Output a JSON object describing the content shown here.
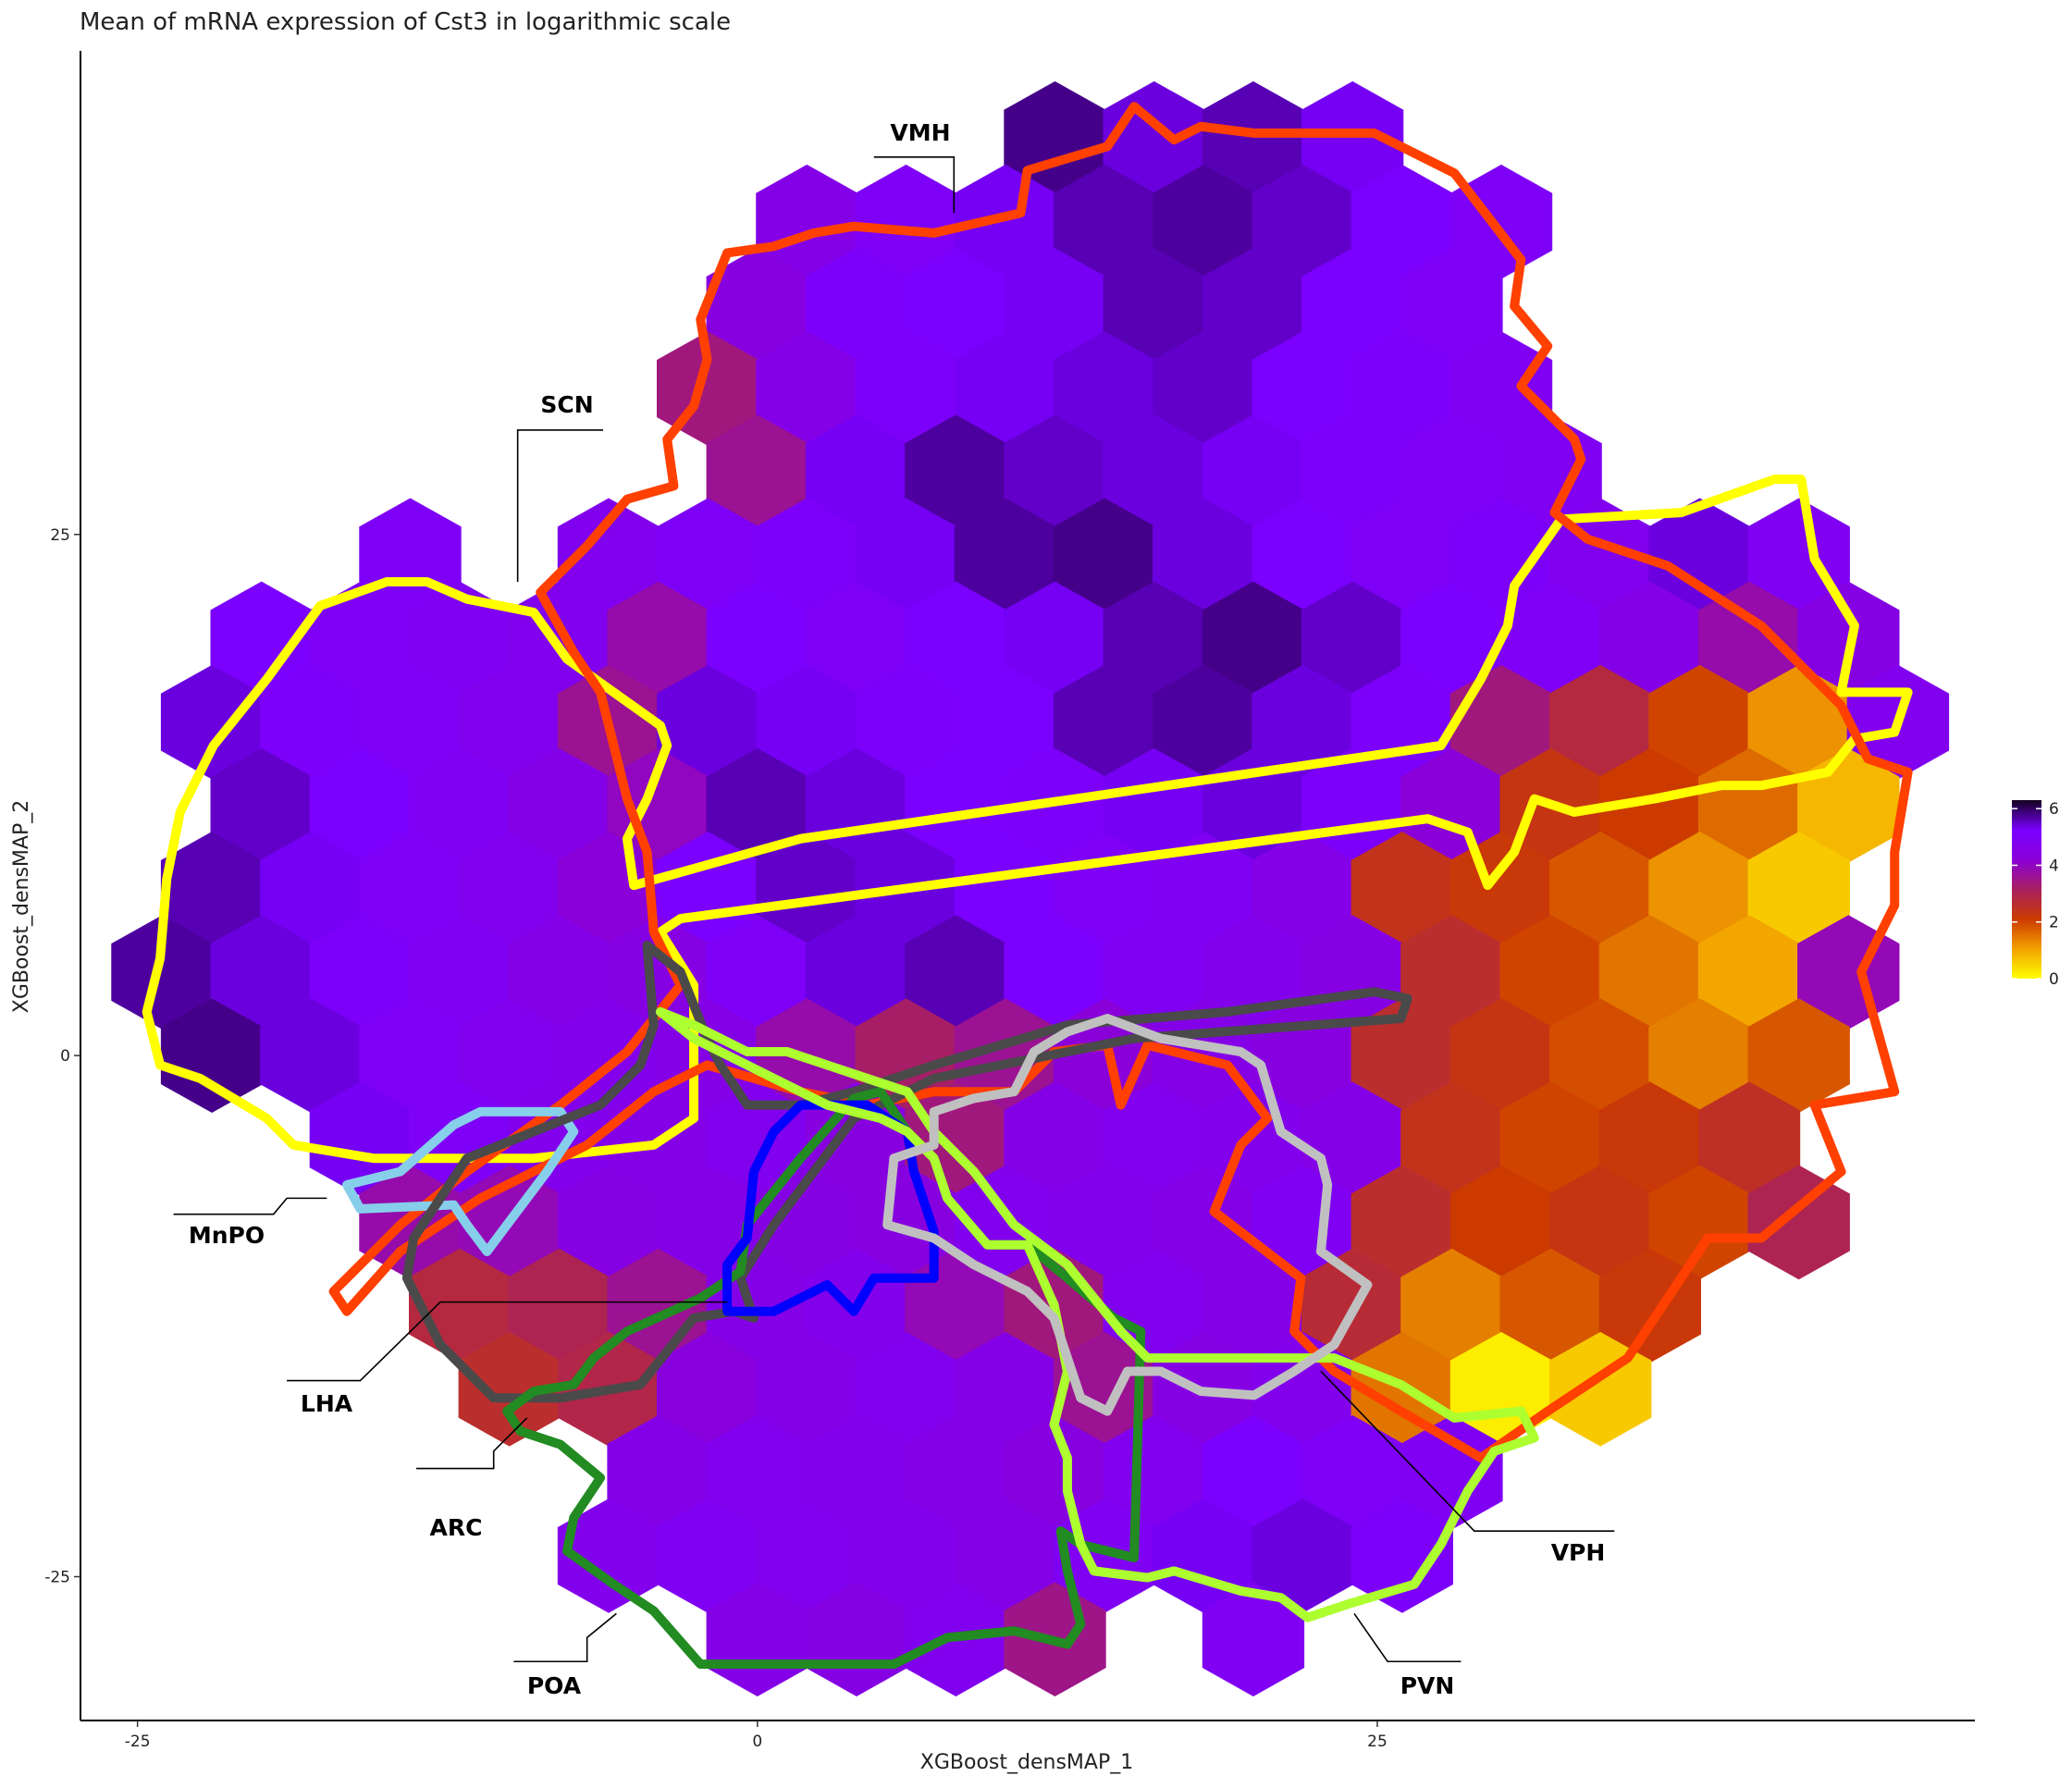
{
  "chart_data": {
    "type": "hexbin",
    "title": "Mean of mRNA expression of Cst3 in logarithmic scale",
    "x_label": "XGBoost_densMAP_1",
    "y_label": "XGBoost_densMAP_2",
    "xlim": [
      -27.3,
      49.1
    ],
    "ylim": [
      -31.9,
      48.2
    ],
    "xticks": [
      -25,
      0,
      25
    ],
    "yticks": [
      -25,
      0,
      25
    ],
    "colorbar": {
      "lim": [
        0,
        6.3
      ],
      "ticks": [
        0,
        2,
        4,
        6
      ],
      "colors": [
        "#ffff00",
        "#f2a100",
        "#cc3a00",
        "#a82060",
        "#8a00d8",
        "#7a00ff",
        "#14001f"
      ]
    },
    "rows": [
      {
        "y": 44,
        "x": [
          12,
          16,
          20,
          24
        ],
        "values": [
          5.8,
          5.4,
          5.6,
          5.3
        ]
      },
      {
        "y": 40,
        "x": [
          2,
          6,
          10,
          14,
          18,
          22,
          26,
          30
        ],
        "values": [
          4.6,
          5.0,
          5.3,
          5.6,
          5.7,
          5.5,
          5.2,
          5.0
        ]
      },
      {
        "y": 36,
        "x": [
          0,
          4,
          8,
          12,
          16,
          20,
          24,
          28
        ],
        "values": [
          4.4,
          5.1,
          5.2,
          5.3,
          5.6,
          5.5,
          5.2,
          5.0
        ]
      },
      {
        "y": 32,
        "x": [
          -2,
          2,
          6,
          10,
          14,
          18,
          22,
          26,
          30
        ],
        "values": [
          3.4,
          4.6,
          5.1,
          5.3,
          5.4,
          5.5,
          5.2,
          5.1,
          4.9
        ]
      },
      {
        "y": 28,
        "x": [
          0,
          4,
          8,
          12,
          16,
          20,
          24,
          28,
          32
        ],
        "values": [
          3.6,
          5.3,
          5.7,
          5.5,
          5.4,
          5.3,
          5.1,
          5.0,
          4.9
        ]
      },
      {
        "y": 24,
        "x": [
          -14,
          -6,
          -2,
          2,
          6,
          10,
          14,
          18,
          22,
          26,
          30,
          34,
          38,
          42
        ],
        "values": [
          5.0,
          4.8,
          5.0,
          5.1,
          5.3,
          5.7,
          5.8,
          5.4,
          5.2,
          5.0,
          5.1,
          4.8,
          5.4,
          4.9
        ]
      },
      {
        "y": 20,
        "x": [
          -20,
          -16,
          -12,
          -8,
          -4,
          0,
          4,
          8,
          12,
          16,
          20,
          24,
          28,
          32,
          36,
          40,
          44
        ],
        "values": [
          5.2,
          5.0,
          4.9,
          4.8,
          3.8,
          5.2,
          5.0,
          5.2,
          5.3,
          5.6,
          5.8,
          5.5,
          5.2,
          5.0,
          4.6,
          3.8,
          4.5
        ]
      },
      {
        "y": 16,
        "x": [
          -22,
          -18,
          -14,
          -10,
          -6,
          -2,
          2,
          6,
          10,
          14,
          18,
          22,
          26,
          30,
          34,
          38,
          42,
          46
        ],
        "values": [
          5.4,
          5.1,
          5.0,
          4.8,
          3.6,
          5.4,
          5.3,
          5.1,
          5.2,
          5.6,
          5.7,
          5.4,
          5.1,
          3.4,
          2.8,
          2.0,
          1.2,
          4.8
        ]
      },
      {
        "y": 12,
        "x": [
          -20,
          -16,
          -12,
          -8,
          -4,
          0,
          4,
          8,
          12,
          16,
          20,
          24,
          28,
          32,
          36,
          40,
          44
        ],
        "values": [
          5.5,
          5.2,
          4.9,
          4.6,
          4.0,
          5.6,
          5.4,
          5.2,
          5.1,
          5.3,
          5.4,
          5.1,
          4.2,
          2.3,
          2.1,
          1.6,
          0.8
        ]
      },
      {
        "y": 8,
        "x": [
          -22,
          -18,
          -14,
          -10,
          -6,
          -2,
          2,
          6,
          10,
          14,
          18,
          22,
          26,
          30,
          34,
          38,
          42
        ],
        "values": [
          5.6,
          5.3,
          5.0,
          4.8,
          4.2,
          5.2,
          5.5,
          5.4,
          5.2,
          5.0,
          4.9,
          4.6,
          2.4,
          2.2,
          1.8,
          1.2,
          0.6
        ]
      },
      {
        "y": 4,
        "x": [
          -24,
          -20,
          -16,
          -12,
          -8,
          -4,
          0,
          4,
          8,
          12,
          16,
          20,
          24,
          28,
          32,
          36,
          40,
          44
        ],
        "values": [
          5.7,
          5.4,
          5.1,
          4.9,
          4.6,
          4.5,
          5.0,
          5.4,
          5.6,
          5.2,
          4.9,
          4.7,
          4.5,
          2.6,
          2.0,
          1.5,
          1.0,
          3.9
        ]
      },
      {
        "y": 0,
        "x": [
          -22,
          -18,
          -14,
          -10,
          -6,
          -2,
          2,
          6,
          10,
          14,
          18,
          22,
          26,
          30,
          34,
          38,
          42
        ],
        "values": [
          5.8,
          5.4,
          5.0,
          4.8,
          4.7,
          4.6,
          3.8,
          3.2,
          3.6,
          4.2,
          4.6,
          4.4,
          2.6,
          2.3,
          1.9,
          1.4,
          1.8
        ]
      },
      {
        "y": -4,
        "x": [
          -16,
          -12,
          -8,
          -4,
          0,
          4,
          8,
          12,
          16,
          20,
          24,
          28,
          32,
          36,
          40
        ],
        "values": [
          5.3,
          5.0,
          4.7,
          4.6,
          4.8,
          4.4,
          3.4,
          4.6,
          4.8,
          4.7,
          4.6,
          2.4,
          2.0,
          2.2,
          2.5
        ]
      },
      {
        "y": -8,
        "x": [
          -14,
          -10,
          -6,
          -2,
          2,
          6,
          10,
          14,
          18,
          22,
          26,
          30,
          34,
          38,
          42
        ],
        "values": [
          3.8,
          3.9,
          4.5,
          4.6,
          4.5,
          4.4,
          4.8,
          4.7,
          4.6,
          4.9,
          2.6,
          2.1,
          2.3,
          2.0,
          3.0
        ]
      },
      {
        "y": -12,
        "x": [
          -12,
          -8,
          -4,
          0,
          4,
          8,
          12,
          16,
          20,
          24,
          28,
          32,
          36
        ],
        "values": [
          2.8,
          3.0,
          3.6,
          4.6,
          4.7,
          3.9,
          3.4,
          4.8,
          4.6,
          2.7,
          1.4,
          1.8,
          2.2
        ]
      },
      {
        "y": -16,
        "x": [
          -10,
          -6,
          -2,
          2,
          6,
          10,
          14,
          18,
          22,
          26,
          30,
          34
        ],
        "values": [
          2.6,
          2.9,
          4.3,
          4.6,
          4.8,
          4.6,
          3.6,
          4.5,
          4.7,
          1.5,
          0.2,
          0.6
        ]
      },
      {
        "y": -20,
        "x": [
          -4,
          0,
          4,
          8,
          12,
          16,
          20,
          24,
          28
        ],
        "values": [
          4.6,
          4.8,
          4.7,
          4.6,
          4.4,
          4.8,
          5.2,
          5.0,
          4.9
        ]
      },
      {
        "y": -24,
        "x": [
          -6,
          -2,
          2,
          6,
          10,
          14,
          18,
          22,
          26
        ],
        "values": [
          4.7,
          4.9,
          4.8,
          4.7,
          4.6,
          4.9,
          5.3,
          5.4,
          5.1
        ]
      },
      {
        "y": -28,
        "x": [
          0,
          4,
          8,
          12,
          20
        ],
        "values": [
          4.6,
          4.5,
          4.8,
          3.5,
          4.9
        ]
      }
    ],
    "annotations": [
      "VMH",
      "SCN",
      "MnPO",
      "LHA",
      "ARC",
      "POA",
      "PVN",
      "VPH"
    ]
  }
}
